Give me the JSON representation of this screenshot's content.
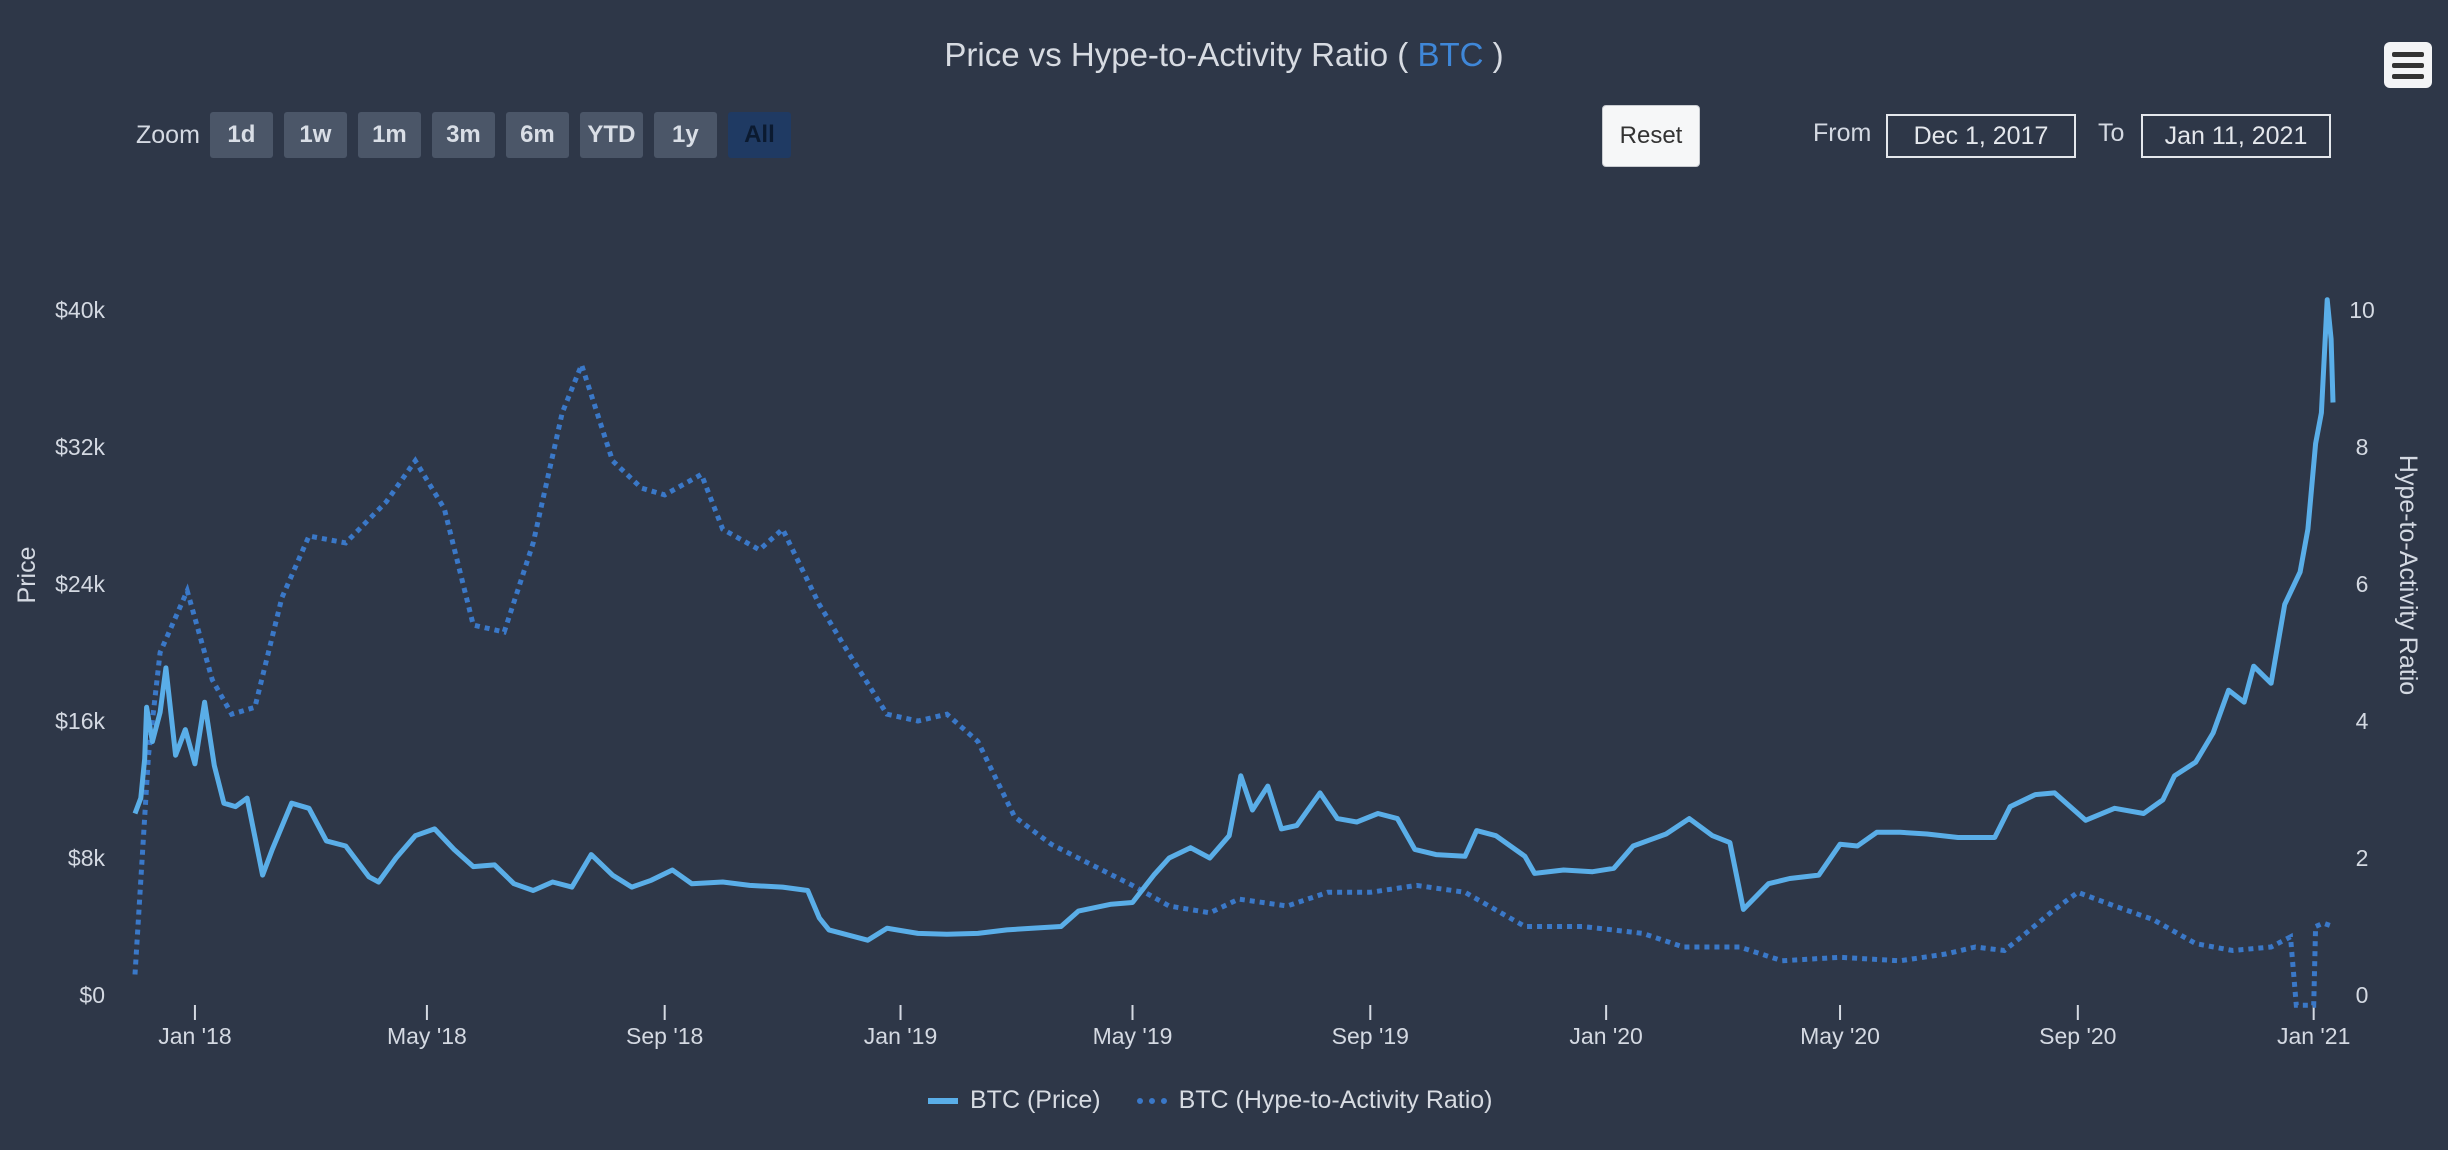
{
  "header": {
    "title_prefix": "Price vs Hype-to-Activity Ratio (",
    "title_symbol": "BTC",
    "title_suffix": ")"
  },
  "toolbar": {
    "zoom_label": "Zoom",
    "zoom_buttons": [
      "1d",
      "1w",
      "1m",
      "3m",
      "6m",
      "YTD",
      "1y",
      "All"
    ],
    "active_zoom": "All",
    "reset_label": "Reset",
    "from_label": "From",
    "from_value": "Dec 1, 2017",
    "to_label": "To",
    "to_value": "Jan 11, 2021",
    "menu_icon": "hamburger-menu-icon"
  },
  "colors": {
    "background": "#2e3748",
    "price_line": "#5aaee8",
    "ratio_line": "#3a78c8",
    "title_symbol": "#3f87d8",
    "axis_text": "#d4d9e2"
  },
  "chart_data": {
    "type": "line",
    "title": "Price vs Hype-to-Activity Ratio ( BTC )",
    "xlabel": "",
    "ylabel": "Price",
    "ylabel_right": "Hype-to-Activity Ratio",
    "x_ticks": [
      "Jan '18",
      "May '18",
      "Sep '18",
      "Jan '19",
      "May '19",
      "Sep '19",
      "Jan '20",
      "May '20",
      "Sep '20",
      "Jan '21"
    ],
    "y_ticks_left": [
      "$0",
      "$8k",
      "$16k",
      "$24k",
      "$32k",
      "$40k"
    ],
    "y_ticks_right": [
      "0",
      "2",
      "4",
      "6",
      "8",
      "10"
    ],
    "ylim": [
      0,
      40000
    ],
    "ylim_right": [
      0,
      10
    ],
    "grid": false,
    "legend_position": "bottom-center",
    "series": [
      {
        "name": "BTC (Price)",
        "axis": "left",
        "style": "solid",
        "points": [
          [
            "2017-12-01",
            10600
          ],
          [
            "2017-12-04",
            11500
          ],
          [
            "2017-12-06",
            13800
          ],
          [
            "2017-12-07",
            16800
          ],
          [
            "2017-12-10",
            14800
          ],
          [
            "2017-12-14",
            16500
          ],
          [
            "2017-12-17",
            19100
          ],
          [
            "2017-12-22",
            14000
          ],
          [
            "2017-12-27",
            15500
          ],
          [
            "2018-01-01",
            13500
          ],
          [
            "2018-01-06",
            17100
          ],
          [
            "2018-01-11",
            13400
          ],
          [
            "2018-01-16",
            11200
          ],
          [
            "2018-01-22",
            11000
          ],
          [
            "2018-01-28",
            11500
          ],
          [
            "2018-02-05",
            7000
          ],
          [
            "2018-02-10",
            8500
          ],
          [
            "2018-02-20",
            11200
          ],
          [
            "2018-03-01",
            10900
          ],
          [
            "2018-03-10",
            9000
          ],
          [
            "2018-03-20",
            8700
          ],
          [
            "2018-04-01",
            6900
          ],
          [
            "2018-04-06",
            6600
          ],
          [
            "2018-04-15",
            8000
          ],
          [
            "2018-04-25",
            9300
          ],
          [
            "2018-05-05",
            9700
          ],
          [
            "2018-05-15",
            8500
          ],
          [
            "2018-05-25",
            7500
          ],
          [
            "2018-06-05",
            7600
          ],
          [
            "2018-06-15",
            6500
          ],
          [
            "2018-06-25",
            6100
          ],
          [
            "2018-07-05",
            6600
          ],
          [
            "2018-07-15",
            6300
          ],
          [
            "2018-07-25",
            8200
          ],
          [
            "2018-08-05",
            7000
          ],
          [
            "2018-08-15",
            6300
          ],
          [
            "2018-08-25",
            6700
          ],
          [
            "2018-09-05",
            7300
          ],
          [
            "2018-09-15",
            6500
          ],
          [
            "2018-10-01",
            6600
          ],
          [
            "2018-10-15",
            6400
          ],
          [
            "2018-11-01",
            6300
          ],
          [
            "2018-11-14",
            6100
          ],
          [
            "2018-11-20",
            4500
          ],
          [
            "2018-11-25",
            3800
          ],
          [
            "2018-12-05",
            3500
          ],
          [
            "2018-12-15",
            3200
          ],
          [
            "2018-12-25",
            3900
          ],
          [
            "2019-01-10",
            3600
          ],
          [
            "2019-01-25",
            3550
          ],
          [
            "2019-02-10",
            3600
          ],
          [
            "2019-02-25",
            3800
          ],
          [
            "2019-03-10",
            3900
          ],
          [
            "2019-03-25",
            4000
          ],
          [
            "2019-04-03",
            4900
          ],
          [
            "2019-04-20",
            5300
          ],
          [
            "2019-05-01",
            5400
          ],
          [
            "2019-05-12",
            7000
          ],
          [
            "2019-05-20",
            8000
          ],
          [
            "2019-05-31",
            8600
          ],
          [
            "2019-06-10",
            8000
          ],
          [
            "2019-06-20",
            9300
          ],
          [
            "2019-06-26",
            12800
          ],
          [
            "2019-07-02",
            10800
          ],
          [
            "2019-07-10",
            12200
          ],
          [
            "2019-07-17",
            9700
          ],
          [
            "2019-07-25",
            9900
          ],
          [
            "2019-08-06",
            11800
          ],
          [
            "2019-08-15",
            10300
          ],
          [
            "2019-08-25",
            10100
          ],
          [
            "2019-09-05",
            10600
          ],
          [
            "2019-09-15",
            10300
          ],
          [
            "2019-09-24",
            8500
          ],
          [
            "2019-10-05",
            8200
          ],
          [
            "2019-10-20",
            8100
          ],
          [
            "2019-10-26",
            9600
          ],
          [
            "2019-11-05",
            9300
          ],
          [
            "2019-11-20",
            8100
          ],
          [
            "2019-11-25",
            7100
          ],
          [
            "2019-12-10",
            7300
          ],
          [
            "2019-12-25",
            7200
          ],
          [
            "2020-01-05",
            7400
          ],
          [
            "2020-01-15",
            8700
          ],
          [
            "2020-02-01",
            9400
          ],
          [
            "2020-02-13",
            10300
          ],
          [
            "2020-02-25",
            9300
          ],
          [
            "2020-03-05",
            8900
          ],
          [
            "2020-03-12",
            5000
          ],
          [
            "2020-03-25",
            6500
          ],
          [
            "2020-04-05",
            6800
          ],
          [
            "2020-04-20",
            7000
          ],
          [
            "2020-05-01",
            8800
          ],
          [
            "2020-05-10",
            8700
          ],
          [
            "2020-05-20",
            9500
          ],
          [
            "2020-06-01",
            9500
          ],
          [
            "2020-06-15",
            9400
          ],
          [
            "2020-07-01",
            9200
          ],
          [
            "2020-07-20",
            9200
          ],
          [
            "2020-07-28",
            11000
          ],
          [
            "2020-08-10",
            11700
          ],
          [
            "2020-08-20",
            11800
          ],
          [
            "2020-09-05",
            10200
          ],
          [
            "2020-09-20",
            10900
          ],
          [
            "2020-10-05",
            10600
          ],
          [
            "2020-10-15",
            11400
          ],
          [
            "2020-10-21",
            12800
          ],
          [
            "2020-11-01",
            13600
          ],
          [
            "2020-11-10",
            15300
          ],
          [
            "2020-11-18",
            17800
          ],
          [
            "2020-11-26",
            17100
          ],
          [
            "2020-12-01",
            19200
          ],
          [
            "2020-12-10",
            18200
          ],
          [
            "2020-12-17",
            22800
          ],
          [
            "2020-12-25",
            24700
          ],
          [
            "2020-12-29",
            27200
          ],
          [
            "2021-01-02",
            32200
          ],
          [
            "2021-01-05",
            34000
          ],
          [
            "2021-01-08",
            40600
          ],
          [
            "2021-01-10",
            38300
          ],
          [
            "2021-01-11",
            34600
          ]
        ]
      },
      {
        "name": "BTC (Hype-to-Activity Ratio)",
        "axis": "right",
        "style": "dotted",
        "points": [
          [
            "2017-12-01",
            0.3
          ],
          [
            "2017-12-08",
            3.5
          ],
          [
            "2017-12-14",
            5.0
          ],
          [
            "2017-12-28",
            5.9
          ],
          [
            "2018-01-10",
            4.6
          ],
          [
            "2018-01-20",
            4.1
          ],
          [
            "2018-02-01",
            4.2
          ],
          [
            "2018-02-15",
            5.8
          ],
          [
            "2018-03-01",
            6.7
          ],
          [
            "2018-03-20",
            6.6
          ],
          [
            "2018-04-10",
            7.2
          ],
          [
            "2018-04-25",
            7.8
          ],
          [
            "2018-05-10",
            7.1
          ],
          [
            "2018-05-25",
            5.4
          ],
          [
            "2018-06-10",
            5.3
          ],
          [
            "2018-06-25",
            6.6
          ],
          [
            "2018-07-10",
            8.5
          ],
          [
            "2018-07-20",
            9.2
          ],
          [
            "2018-08-05",
            7.8
          ],
          [
            "2018-08-20",
            7.4
          ],
          [
            "2018-09-01",
            7.3
          ],
          [
            "2018-09-20",
            7.6
          ],
          [
            "2018-10-01",
            6.8
          ],
          [
            "2018-10-20",
            6.5
          ],
          [
            "2018-11-01",
            6.8
          ],
          [
            "2018-11-20",
            5.7
          ],
          [
            "2018-12-05",
            5.0
          ],
          [
            "2018-12-25",
            4.1
          ],
          [
            "2019-01-10",
            4.0
          ],
          [
            "2019-01-25",
            4.1
          ],
          [
            "2019-02-10",
            3.7
          ],
          [
            "2019-03-01",
            2.6
          ],
          [
            "2019-03-20",
            2.2
          ],
          [
            "2019-04-10",
            1.9
          ],
          [
            "2019-05-01",
            1.6
          ],
          [
            "2019-05-20",
            1.3
          ],
          [
            "2019-06-10",
            1.2
          ],
          [
            "2019-06-25",
            1.4
          ],
          [
            "2019-07-20",
            1.3
          ],
          [
            "2019-08-10",
            1.5
          ],
          [
            "2019-09-01",
            1.5
          ],
          [
            "2019-09-25",
            1.6
          ],
          [
            "2019-10-20",
            1.5
          ],
          [
            "2019-11-20",
            1.0
          ],
          [
            "2019-12-20",
            1.0
          ],
          [
            "2020-01-20",
            0.9
          ],
          [
            "2020-02-10",
            0.7
          ],
          [
            "2020-03-10",
            0.7
          ],
          [
            "2020-04-01",
            0.5
          ],
          [
            "2020-05-01",
            0.55
          ],
          [
            "2020-06-01",
            0.5
          ],
          [
            "2020-06-25",
            0.6
          ],
          [
            "2020-07-10",
            0.7
          ],
          [
            "2020-07-25",
            0.65
          ],
          [
            "2020-08-05",
            0.9
          ],
          [
            "2020-08-20",
            1.25
          ],
          [
            "2020-09-01",
            1.5
          ],
          [
            "2020-09-20",
            1.3
          ],
          [
            "2020-10-10",
            1.1
          ],
          [
            "2020-11-01",
            0.75
          ],
          [
            "2020-11-20",
            0.65
          ],
          [
            "2020-12-10",
            0.7
          ],
          [
            "2020-12-20",
            0.85
          ],
          [
            "2020-12-23",
            -0.15
          ],
          [
            "2021-01-01",
            -0.15
          ],
          [
            "2021-01-02",
            1.0
          ],
          [
            "2021-01-06",
            1.05
          ],
          [
            "2021-01-11",
            1.0
          ]
        ]
      }
    ]
  }
}
